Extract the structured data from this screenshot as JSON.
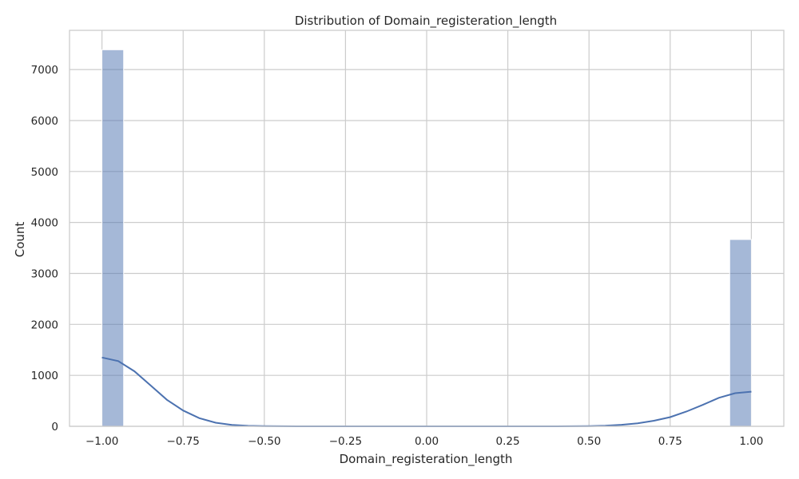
{
  "chart_data": {
    "type": "bar",
    "title": "Distribution of Domain_registeration_length",
    "xlabel": "Domain_registeration_length",
    "ylabel": "Count",
    "xlim": [
      -1.1,
      1.1
    ],
    "ylim": [
      0,
      7770
    ],
    "xticks": [
      -1.0,
      -0.75,
      -0.5,
      -0.25,
      0.0,
      0.25,
      0.5,
      0.75,
      1.0
    ],
    "xtick_labels": [
      "−1.00",
      "−0.75",
      "−0.50",
      "−0.25",
      "0.00",
      "0.25",
      "0.50",
      "0.75",
      "1.00"
    ],
    "yticks": [
      0,
      1000,
      2000,
      3000,
      4000,
      5000,
      6000,
      7000
    ],
    "ytick_labels": [
      "0",
      "1000",
      "2000",
      "3000",
      "4000",
      "5000",
      "6000",
      "7000"
    ],
    "grid": true,
    "bins": [
      {
        "x0": -1.0,
        "x1": -0.9333,
        "count": 7389
      },
      {
        "x0": 0.9333,
        "x1": 1.0,
        "count": 3666
      }
    ],
    "kde": {
      "x": [
        -1.0,
        -0.95,
        -0.9,
        -0.85,
        -0.8,
        -0.75,
        -0.7,
        -0.65,
        -0.6,
        -0.55,
        -0.5,
        -0.45,
        -0.4,
        -0.3,
        -0.2,
        0.0,
        0.2,
        0.3,
        0.4,
        0.45,
        0.5,
        0.55,
        0.6,
        0.65,
        0.7,
        0.75,
        0.8,
        0.85,
        0.9,
        0.95,
        1.0
      ],
      "y": [
        1350,
        1280,
        1080,
        800,
        520,
        310,
        160,
        70,
        28,
        10,
        4,
        1,
        0,
        0,
        0,
        0,
        0,
        0,
        0,
        1,
        4,
        12,
        30,
        60,
        110,
        180,
        290,
        420,
        560,
        650,
        680
      ]
    },
    "colors": {
      "bar": "#4c72b0",
      "line": "#4c72b0",
      "grid": "#cccccc"
    }
  }
}
